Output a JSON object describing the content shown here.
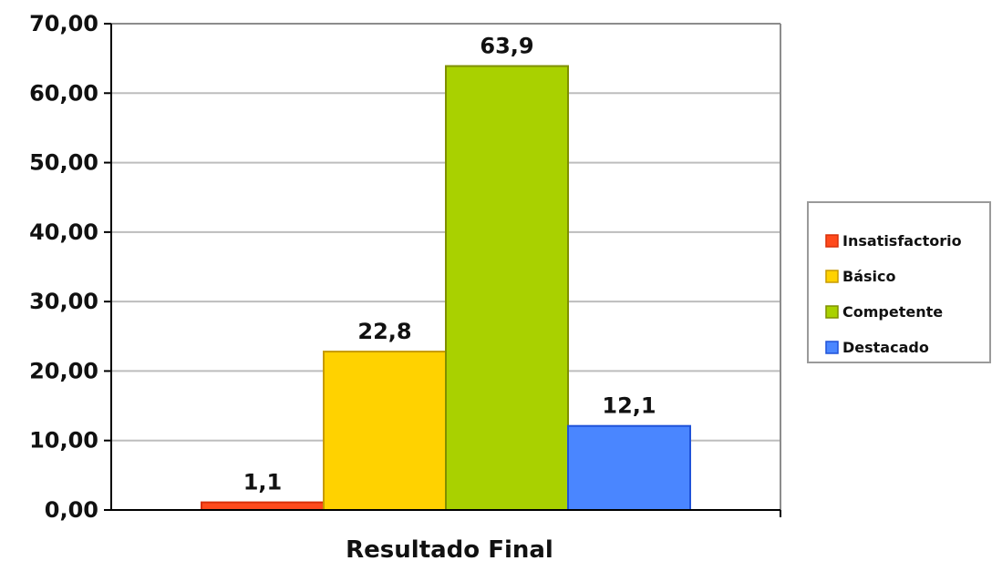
{
  "chart_data": {
    "type": "bar",
    "categories": [
      "Resultado Final"
    ],
    "series": [
      {
        "name": "Insatisfactorio",
        "values": [
          1.1
        ],
        "label": "1,1",
        "color": "#FF4A1C",
        "edge": "#D9300A"
      },
      {
        "name": "Básico",
        "values": [
          22.8
        ],
        "label": "22,8",
        "color": "#FFD200",
        "edge": "#C79A00"
      },
      {
        "name": "Competente",
        "values": [
          63.9
        ],
        "label": "63,9",
        "color": "#A9D100",
        "edge": "#7F8F00"
      },
      {
        "name": "Destacado",
        "values": [
          12.1
        ],
        "label": "12,1",
        "color": "#4A86FF",
        "edge": "#1F52D8"
      }
    ],
    "ylim": [
      0,
      70
    ],
    "yticks": [
      0,
      10,
      20,
      30,
      40,
      50,
      60,
      70
    ],
    "ytick_labels": [
      "0,00",
      "10,00",
      "20,00",
      "30,00",
      "40,00",
      "50,00",
      "60,00",
      "70,00"
    ],
    "xlabel": "Resultado Final",
    "grid": true,
    "legend_position": "right"
  }
}
